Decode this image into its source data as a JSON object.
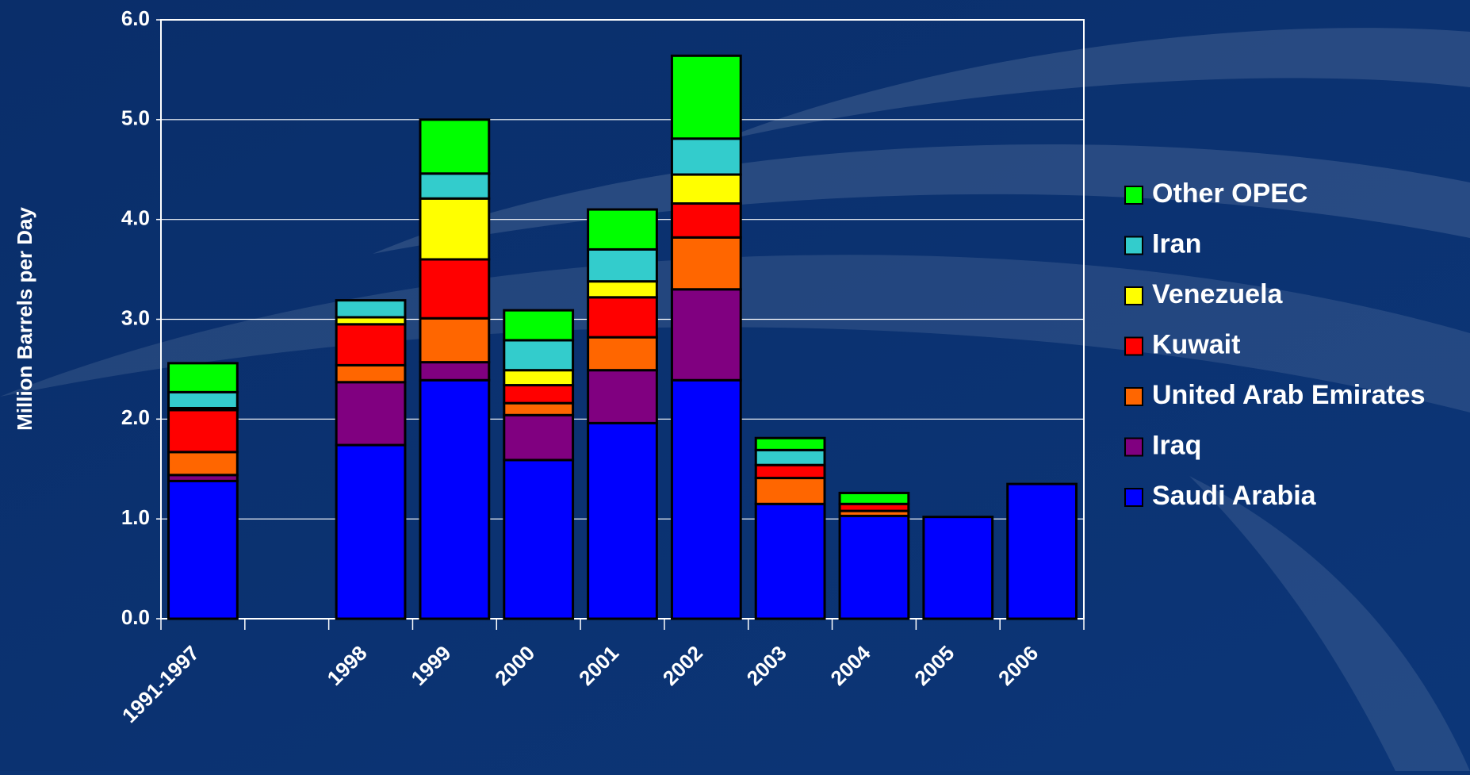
{
  "chart_data": {
    "type": "stacked_bar",
    "y_label": "Million Barrels per Day",
    "categories": [
      "1991-1997",
      null,
      "1998",
      "1999",
      "2000",
      "2001",
      "2002",
      "2003",
      "2004",
      "2005",
      "2006"
    ],
    "series": [
      {
        "name": "Saudi Arabia",
        "color": "#0000ff",
        "values": [
          1.38,
          null,
          1.74,
          2.39,
          1.59,
          1.96,
          2.39,
          1.15,
          1.03,
          1.02,
          1.35
        ]
      },
      {
        "name": "Iraq",
        "color": "#800080",
        "values": [
          0.06,
          null,
          0.63,
          0.18,
          0.45,
          0.53,
          0.91,
          0,
          0,
          0,
          0
        ]
      },
      {
        "name": "United Arab Emirates",
        "color": "#ff6600",
        "values": [
          0.23,
          null,
          0.17,
          0.44,
          0.12,
          0.33,
          0.52,
          0.26,
          0.05,
          0,
          0
        ]
      },
      {
        "name": "Kuwait",
        "color": "#ff0000",
        "values": [
          0.42,
          null,
          0.41,
          0.59,
          0.18,
          0.4,
          0.34,
          0.13,
          0.07,
          0,
          0
        ]
      },
      {
        "name": "Venezuela",
        "color": "#ffff00",
        "values": [
          0.02,
          null,
          0.07,
          0.61,
          0.15,
          0.16,
          0.29,
          0,
          0,
          0,
          0
        ]
      },
      {
        "name": "Iran",
        "color": "#33cccc",
        "values": [
          0.16,
          null,
          0.17,
          0.25,
          0.3,
          0.32,
          0.36,
          0.15,
          0,
          0,
          0
        ]
      },
      {
        "name": "Other OPEC",
        "color": "#00ff00",
        "values": [
          0.29,
          null,
          0,
          0.54,
          0.3,
          0.4,
          0.83,
          0.12,
          0.11,
          0,
          0
        ]
      }
    ],
    "ylim": [
      0,
      6
    ],
    "yticks": [
      {
        "value": 0,
        "label": "0.0"
      },
      {
        "value": 1,
        "label": "1.0"
      },
      {
        "value": 2,
        "label": "2.0"
      },
      {
        "value": 3,
        "label": "3.0"
      },
      {
        "value": 4,
        "label": "4.0"
      },
      {
        "value": 5,
        "label": "5.0"
      },
      {
        "value": 6,
        "label": "6.0"
      }
    ],
    "grid": true
  }
}
